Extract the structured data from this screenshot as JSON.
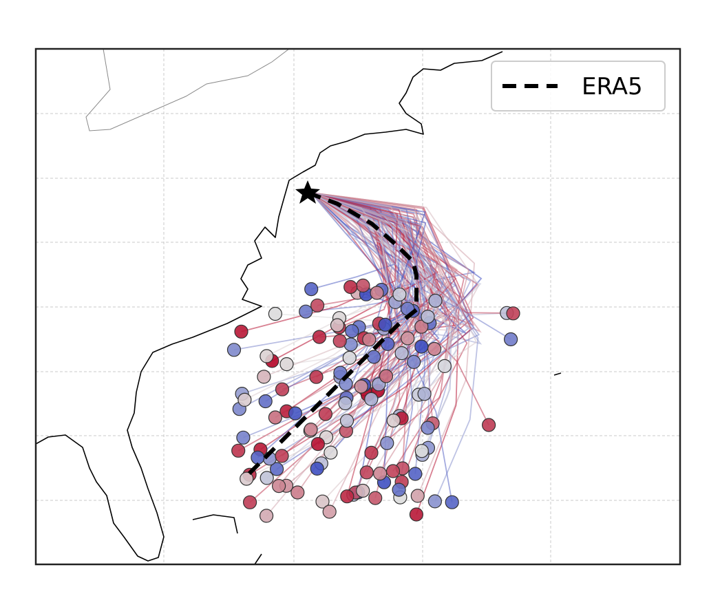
{
  "legend": {
    "entries": [
      {
        "label": "ERA5"
      }
    ]
  }
}
